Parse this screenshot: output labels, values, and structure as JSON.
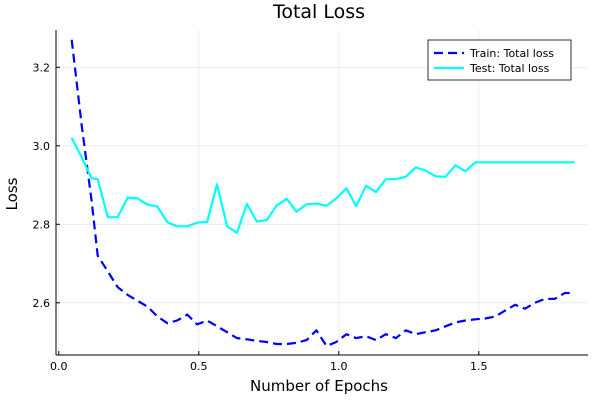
{
  "chart_data": {
    "type": "line",
    "title": "Total Loss",
    "xlabel": "Number of Epochs",
    "ylabel": "Loss",
    "xlim": [
      -0.01,
      1.89
    ],
    "ylim": [
      2.467,
      3.295
    ],
    "xticks": [
      0.0,
      0.5,
      1.0,
      1.5
    ],
    "xtick_labels": [
      "0.0",
      "0.5",
      "1.0",
      "1.5"
    ],
    "yticks": [
      2.6,
      2.8,
      3.0,
      3.2
    ],
    "ytick_labels": [
      "2.6",
      "2.8",
      "3.0",
      "3.2"
    ],
    "grid": true,
    "legend_position": "top-right",
    "series": [
      {
        "name": "Train: Total loss",
        "color": "#0000ff",
        "dash": "dashed",
        "x": [
          0.046,
          0.082,
          0.117,
          0.139,
          0.175,
          0.21,
          0.246,
          0.281,
          0.317,
          0.352,
          0.388,
          0.423,
          0.459,
          0.494,
          0.53,
          0.565,
          0.601,
          0.636,
          0.672,
          0.707,
          0.743,
          0.778,
          0.814,
          0.849,
          0.885,
          0.92,
          0.956,
          0.991,
          1.027,
          1.062,
          1.097,
          1.133,
          1.168,
          1.204,
          1.239,
          1.275,
          1.31,
          1.346,
          1.381,
          1.417,
          1.452,
          1.488,
          1.523,
          1.559,
          1.594,
          1.63,
          1.665,
          1.7,
          1.736,
          1.771,
          1.807,
          1.842
        ],
        "y": [
          3.27,
          3.05,
          2.86,
          2.72,
          2.68,
          2.64,
          2.62,
          2.605,
          2.59,
          2.565,
          2.548,
          2.555,
          2.57,
          2.545,
          2.555,
          2.54,
          2.525,
          2.51,
          2.507,
          2.503,
          2.5,
          2.495,
          2.495,
          2.498,
          2.505,
          2.53,
          2.49,
          2.5,
          2.52,
          2.51,
          2.515,
          2.505,
          2.52,
          2.51,
          2.53,
          2.52,
          2.525,
          2.53,
          2.54,
          2.55,
          2.555,
          2.558,
          2.56,
          2.565,
          2.58,
          2.595,
          2.585,
          2.6,
          2.61,
          2.61,
          2.625,
          2.625
        ]
      },
      {
        "name": "Test: Total loss",
        "color": "#00ffff",
        "dash": "solid",
        "x": [
          0.046,
          0.082,
          0.117,
          0.139,
          0.175,
          0.21,
          0.246,
          0.281,
          0.317,
          0.352,
          0.388,
          0.423,
          0.459,
          0.494,
          0.53,
          0.565,
          0.601,
          0.636,
          0.672,
          0.707,
          0.743,
          0.778,
          0.814,
          0.849,
          0.885,
          0.92,
          0.956,
          0.991,
          1.027,
          1.062,
          1.097,
          1.133,
          1.168,
          1.204,
          1.239,
          1.275,
          1.31,
          1.346,
          1.381,
          1.417,
          1.452,
          1.488,
          1.523,
          1.559,
          1.594,
          1.63,
          1.665,
          1.7,
          1.736,
          1.771,
          1.807,
          1.842
        ],
        "y": [
          3.02,
          2.97,
          2.917,
          2.915,
          2.818,
          2.818,
          2.868,
          2.866,
          2.85,
          2.845,
          2.805,
          2.795,
          2.795,
          2.804,
          2.806,
          2.902,
          2.795,
          2.778,
          2.852,
          2.807,
          2.811,
          2.847,
          2.865,
          2.832,
          2.851,
          2.853,
          2.847,
          2.866,
          2.892,
          2.846,
          2.898,
          2.882,
          2.915,
          2.915,
          2.921,
          2.945,
          2.937,
          2.922,
          2.921,
          2.95,
          2.935,
          2.958,
          2.958,
          2.958,
          2.958,
          2.958,
          2.958,
          2.958,
          2.958,
          2.958,
          2.958,
          2.958
        ]
      }
    ]
  }
}
